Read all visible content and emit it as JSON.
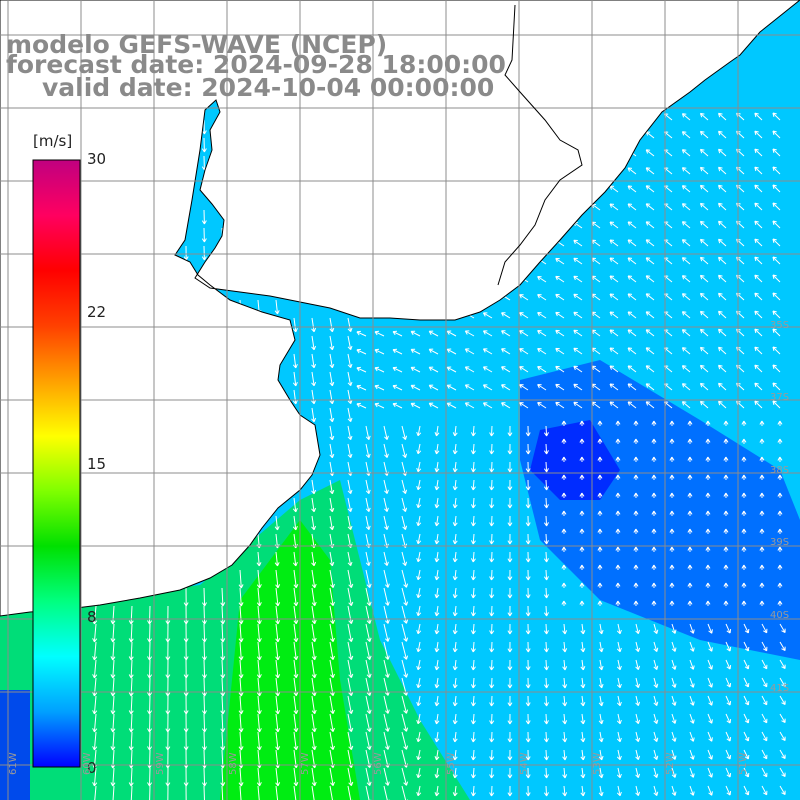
{
  "title": {
    "line1": "modelo GEFS-WAVE (NCEP)",
    "line2": "forecast date: 2024-09-28 18:00:00",
    "line3": "valid date: 2024-10-04 00:00:00"
  },
  "colorbar": {
    "unit": "[m/s]",
    "ticks": [
      "30",
      "22",
      "15",
      "8",
      "0"
    ],
    "tick_values": [
      30,
      22,
      15,
      8,
      0
    ],
    "range": [
      0,
      30
    ],
    "colors": [
      "#0000ff",
      "#00a0ff",
      "#00ffff",
      "#00ff80",
      "#00e000",
      "#80ff00",
      "#ffff00",
      "#ffa000",
      "#ff4000",
      "#ff0000",
      "#ff0060",
      "#c00080"
    ]
  },
  "map": {
    "ocean_mid_color": "#00c8ff",
    "land_color": "#ffffff",
    "grid_color": "#8c8c8c",
    "coast_color": "#000000",
    "lat_labels": [
      "35S",
      "37S",
      "38S",
      "39S",
      "40S",
      "41S"
    ],
    "lon_labels": [
      "61W",
      "60W",
      "59W",
      "58W",
      "57W",
      "56W",
      "55W",
      "54W",
      "53W",
      "52W",
      "51W"
    ]
  }
}
